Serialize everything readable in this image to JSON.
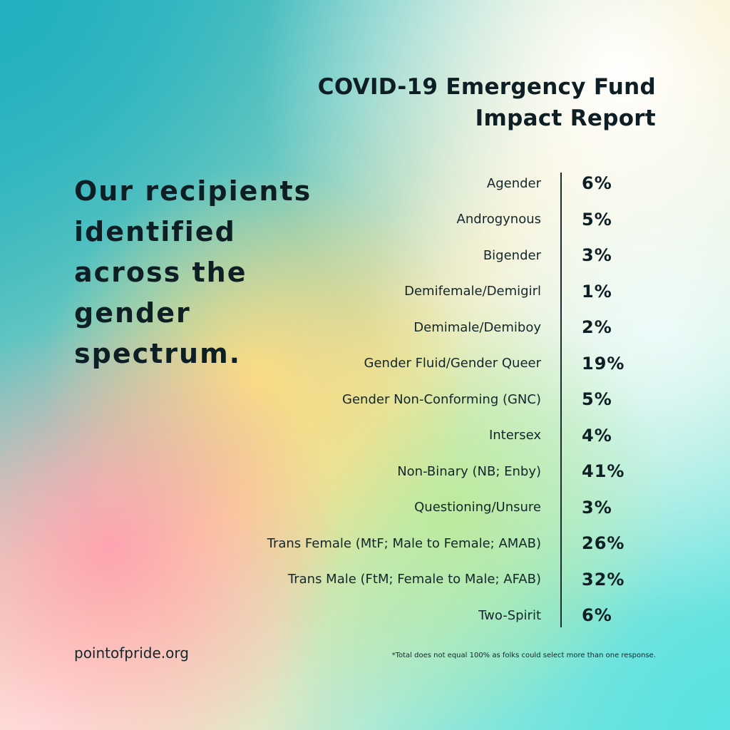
{
  "header": {
    "title_line1": "COVID-19 Emergency Fund",
    "title_line2": "Impact Report"
  },
  "headline": "Our recipients identified across the gender spectrum.",
  "footer": {
    "site": "pointofpride.org",
    "footnote": "*Total does not equal 100% as folks could select more than one response."
  },
  "chart_data": {
    "type": "table",
    "title": "COVID-19 Emergency Fund Impact Report",
    "subtitle": "Our recipients identified across the gender spectrum.",
    "categories": [
      "Agender",
      "Androgynous",
      "Bigender",
      "Demifemale/Demigirl",
      "Demimale/Demiboy",
      "Gender Fluid/Gender Queer",
      "Gender Non-Conforming (GNC)",
      "Intersex",
      "Non-Binary (NB; Enby)",
      "Questioning/Unsure",
      "Trans Female (MtF; Male to Female; AMAB)",
      "Trans Male (FtM; Female to Male; AFAB)",
      "Two-Spirit"
    ],
    "values": [
      6,
      5,
      3,
      1,
      2,
      19,
      5,
      4,
      41,
      3,
      26,
      32,
      6
    ],
    "value_labels": [
      "6%",
      "5%",
      "3%",
      "1%",
      "2%",
      "19%",
      "5%",
      "4%",
      "41%",
      "3%",
      "26%",
      "32%",
      "6%"
    ],
    "unit": "%",
    "note": "*Total does not equal 100% as folks could select more than one response."
  }
}
